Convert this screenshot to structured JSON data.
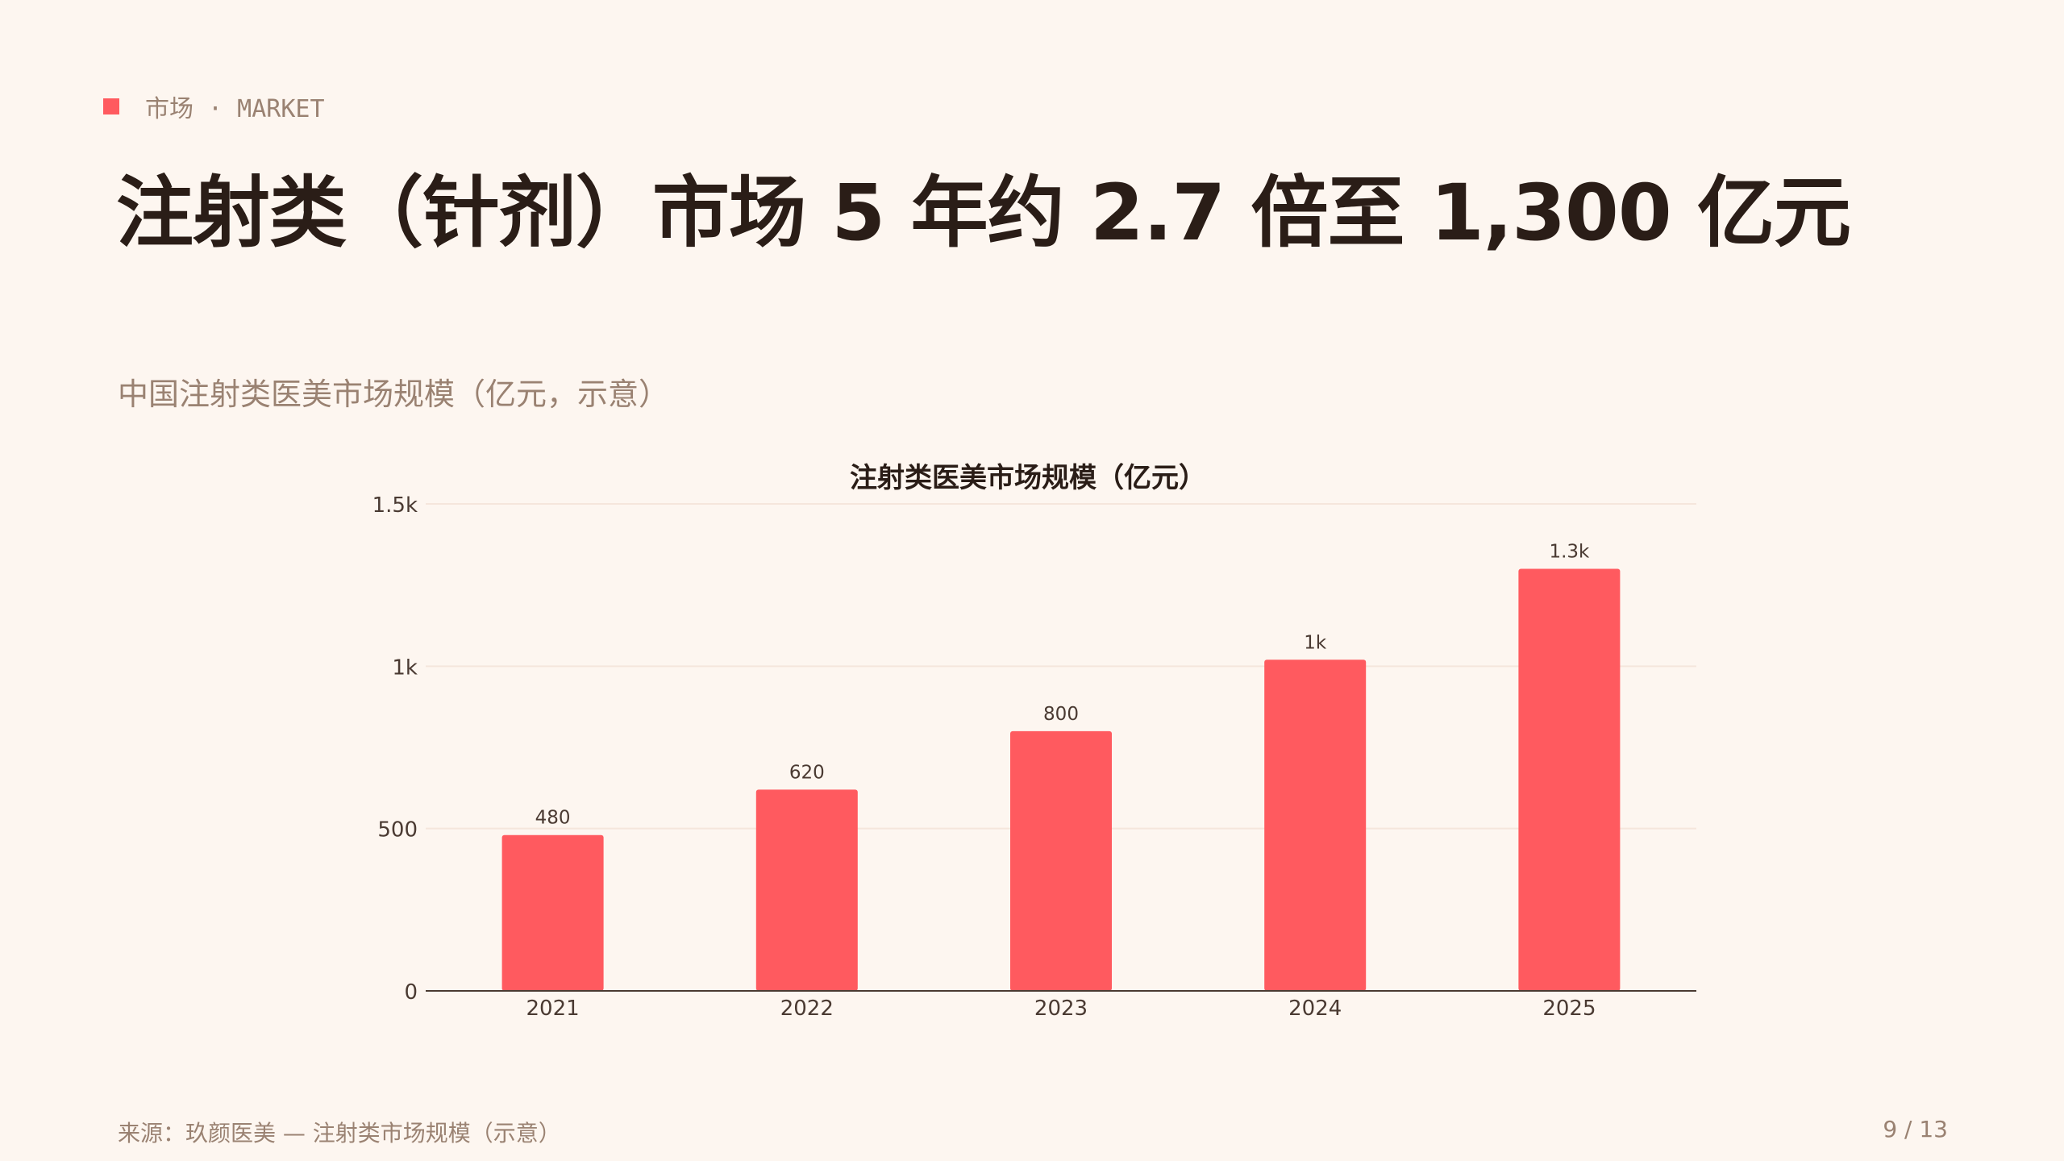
{
  "eyebrow": {
    "label": "市场 · MARKET",
    "accent_color": "#ff5a5f"
  },
  "title": "注射类（针剂）市场 5 年约 2.7 倍至 1,300 亿元",
  "subtitle": "中国注射类医美市场规模（亿元，示意）",
  "chart_data": {
    "type": "bar",
    "title": "注射类医美市场规模（亿元）",
    "categories": [
      "2021",
      "2022",
      "2023",
      "2024",
      "2025"
    ],
    "values": [
      480,
      620,
      800,
      1020,
      1300
    ],
    "data_labels": [
      "480",
      "620",
      "800",
      "1k",
      "1.3k"
    ],
    "ylim": [
      0,
      1500
    ],
    "yticks": [
      0,
      500,
      1000,
      1500
    ],
    "ytick_labels": [
      "0",
      "500",
      "1k",
      "1.5k"
    ],
    "xlabel": "",
    "ylabel": "",
    "grid": true,
    "bar_color": "#ff5a5f"
  },
  "footer": {
    "source": "来源：玖颜医美 — 注射类市场规模（示意）",
    "page": "9 / 13"
  }
}
